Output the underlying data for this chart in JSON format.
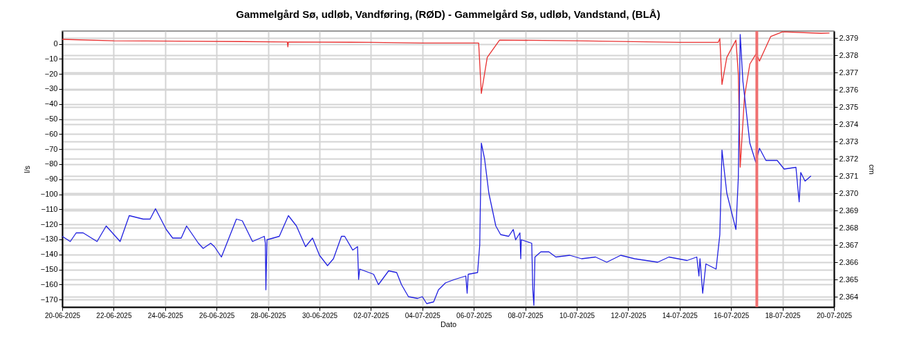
{
  "chart_data": {
    "type": "line",
    "title": "Gammelgård Sø, udløb, Vandføring, (RØD)  -  Gammelgård Sø, udløb, Vandstand, (BLÅ)",
    "xlabel": "Dato",
    "ylabel": "l/s",
    "y2label": "cm",
    "grid": true,
    "xlim": [
      "2025-06-20",
      "2025-07-20"
    ],
    "xticks": [
      {
        "value": "2025-06-20",
        "label": "20-06-2025"
      },
      {
        "value": "2025-06-22",
        "label": "22-06-2025"
      },
      {
        "value": "2025-06-24",
        "label": "24-06-2025"
      },
      {
        "value": "2025-06-26",
        "label": "26-06-2025"
      },
      {
        "value": "2025-06-28",
        "label": "28-06-2025"
      },
      {
        "value": "2025-06-30",
        "label": "30-06-2025"
      },
      {
        "value": "2025-07-02",
        "label": "02-07-2025"
      },
      {
        "value": "2025-07-04",
        "label": "04-07-2025"
      },
      {
        "value": "2025-07-06",
        "label": "06-07-2025"
      },
      {
        "value": "2025-07-08",
        "label": "08-07-2025"
      },
      {
        "value": "2025-07-10",
        "label": "10-07-2025"
      },
      {
        "value": "2025-07-12",
        "label": "12-07-2025"
      },
      {
        "value": "2025-07-14",
        "label": "14-07-2025"
      },
      {
        "value": "2025-07-16",
        "label": "16-07-2025"
      },
      {
        "value": "2025-07-18",
        "label": "18-07-2025"
      },
      {
        "value": "2025-07-20",
        "label": "20-07-2025"
      }
    ],
    "ylim": [
      -175,
      8.5
    ],
    "yticks": [
      0,
      -10,
      -20,
      -30,
      -40,
      -50,
      -60,
      -70,
      -80,
      -90,
      -100,
      -110,
      -120,
      -130,
      -140,
      -150,
      -160,
      -170
    ],
    "y2lim": [
      2.3634,
      2.3794
    ],
    "y2ticks": [
      2.364,
      2.365,
      2.366,
      2.367,
      2.368,
      2.369,
      {
        "value": 2.37,
        "label": "2.370"
      },
      2.371,
      2.372,
      2.373,
      2.374,
      2.375,
      2.376,
      2.377,
      2.378,
      2.379
    ],
    "ref_lines": [
      {
        "axis": "x",
        "value": "2025-07-17T00:00",
        "color": "#f07070"
      }
    ],
    "series": [
      {
        "color": "#e83030",
        "x": [
          "2025-06-20T00:00",
          "2025-06-22T00:00",
          "2025-06-27T00:00",
          "2025-06-28T18:00",
          "2025-06-28T18:30",
          "2025-06-28T19:00",
          "2025-07-02T00:00",
          "2025-07-04T00:00",
          "2025-07-06T04:30",
          "2025-07-06T07:00",
          "2025-07-06T12:30",
          "2025-07-07T00:00",
          "2025-07-10T00:00",
          "2025-07-14T00:00",
          "2025-07-15T12:00",
          "2025-07-15T13:30",
          "2025-07-15T15:30",
          "2025-07-15T20:00",
          "2025-07-16T04:30",
          "2025-07-16T06:45",
          "2025-07-16T08:30",
          "2025-07-16T12:30",
          "2025-07-16T17:30",
          "2025-07-16T23:30",
          "2025-07-17T02:30",
          "2025-07-17T13:00",
          "2025-07-18T00:00",
          "2025-07-19T12:00",
          "2025-07-19T19:45"
        ],
        "values": [
          3,
          2,
          1.5,
          1.2,
          -2,
          1.2,
          1,
          0.5,
          0.5,
          -33,
          -9,
          2.5,
          2,
          1,
          1,
          3.5,
          -27,
          -9,
          2.5,
          -20,
          -82,
          -35,
          -13.4,
          -6.5,
          -11.5,
          4.9,
          8,
          7,
          7.2
        ]
      },
      {
        "color": "#2020e0",
        "axis": "y2",
        "x": [
          "2025-06-20T00:00",
          "2025-06-20T07:30",
          "2025-06-20T13:00",
          "2025-06-20T19:30",
          "2025-06-21T08:30",
          "2025-06-21T17:00",
          "2025-06-22T06:00",
          "2025-06-22T14:30",
          "2025-06-23T03:30",
          "2025-06-23T10:00",
          "2025-06-23T15:00",
          "2025-06-24T01:00",
          "2025-06-24T07:00",
          "2025-06-24T15:00",
          "2025-06-24T20:00",
          "2025-06-25T07:00",
          "2025-06-25T11:30",
          "2025-06-25T18:30",
          "2025-06-25T22:00",
          "2025-06-26T04:30",
          "2025-06-26T18:30",
          "2025-06-27T00:00",
          "2025-06-27T09:30",
          "2025-06-27T20:30",
          "2025-06-27T21:30",
          "2025-06-27T22:00",
          "2025-06-27T23:00",
          "2025-06-28T10:30",
          "2025-06-28T19:00",
          "2025-06-29T02:30",
          "2025-06-29T11:00",
          "2025-06-29T17:30",
          "2025-06-30T00:00",
          "2025-06-30T07:30",
          "2025-06-30T13:00",
          "2025-06-30T20:30",
          "2025-06-30T23:30",
          "2025-07-01T07:00",
          "2025-07-01T11:30",
          "2025-07-01T12:30",
          "2025-07-01T13:30",
          "2025-07-02T02:30",
          "2025-07-02T07:00",
          "2025-07-02T16:30",
          "2025-07-03T00:00",
          "2025-07-03T04:30",
          "2025-07-03T11:00",
          "2025-07-03T19:30",
          "2025-07-04T00:00",
          "2025-07-04T04:00",
          "2025-07-04T10:30",
          "2025-07-04T15:00",
          "2025-07-04T21:30",
          "2025-07-05T06:00",
          "2025-07-05T16:30",
          "2025-07-05T17:45",
          "2025-07-05T18:45",
          "2025-07-06T03:30",
          "2025-07-06T05:30",
          "2025-07-06T07:00",
          "2025-07-06T10:00",
          "2025-07-06T14:00",
          "2025-07-06T20:30",
          "2025-07-07T01:00",
          "2025-07-07T08:30",
          "2025-07-07T12:45",
          "2025-07-07T15:00",
          "2025-07-07T19:00",
          "2025-07-07T19:45",
          "2025-07-07T20:15",
          "2025-07-08T06:00",
          "2025-07-08T07:00",
          "2025-07-08T08:00",
          "2025-07-08T09:00",
          "2025-07-08T14:30",
          "2025-07-08T22:00",
          "2025-07-09T04:30",
          "2025-07-09T17:30",
          "2025-07-10T04:30",
          "2025-07-10T17:30",
          "2025-07-11T04:00",
          "2025-07-11T17:00",
          "2025-07-12T06:00",
          "2025-07-13T03:30",
          "2025-07-13T14:00",
          "2025-07-14T07:00",
          "2025-07-14T16:00",
          "2025-07-14T18:00",
          "2025-07-14T19:00",
          "2025-07-14T21:30",
          "2025-07-15T00:30",
          "2025-07-15T10:00",
          "2025-07-15T13:30",
          "2025-07-15T15:30",
          "2025-07-15T20:00",
          "2025-07-16T04:30",
          "2025-07-16T06:45",
          "2025-07-16T08:30",
          "2025-07-16T11:00",
          "2025-07-16T17:30",
          "2025-07-16T23:00",
          "2025-07-17T02:30",
          "2025-07-17T08:30",
          "2025-07-17T19:00",
          "2025-07-18T01:30",
          "2025-07-18T12:30",
          "2025-07-18T15:30",
          "2025-07-18T17:00",
          "2025-07-18T21:00",
          "2025-07-19T02:30"
        ],
        "values": [
          2.3675,
          2.3672,
          2.3677,
          2.3677,
          2.3672,
          2.3681,
          2.3672,
          2.3687,
          2.3685,
          2.3685,
          2.3691,
          2.3679,
          2.3674,
          2.3674,
          2.3681,
          2.3671,
          2.3668,
          2.3671,
          2.3669,
          2.3663,
          2.3685,
          2.3684,
          2.3672,
          2.3675,
          2.3671,
          2.3644,
          2.3673,
          2.3675,
          2.3687,
          2.3681,
          2.3669,
          2.3674,
          2.3664,
          2.3658,
          2.3662,
          2.3675,
          2.3675,
          2.3667,
          2.3669,
          2.365,
          2.3656,
          2.3653,
          2.3647,
          2.3655,
          2.3654,
          2.3647,
          2.364,
          2.3639,
          2.364,
          2.3636,
          2.3637,
          2.3644,
          2.3648,
          2.365,
          2.3652,
          2.3642,
          2.3653,
          2.3654,
          2.367,
          2.3729,
          2.372,
          2.37,
          2.3681,
          2.3676,
          2.3675,
          2.3679,
          2.3673,
          2.3677,
          2.3662,
          2.3673,
          2.3671,
          2.3644,
          2.3635,
          2.3663,
          2.3666,
          2.3666,
          2.3663,
          2.3664,
          2.3662,
          2.3663,
          2.366,
          2.3664,
          2.3662,
          2.366,
          2.3663,
          2.3661,
          2.3663,
          2.3652,
          2.3662,
          2.3642,
          2.3659,
          2.3656,
          2.3676,
          2.3725,
          2.37,
          2.3679,
          2.3709,
          2.3792,
          2.3765,
          2.3729,
          2.3718,
          2.3726,
          2.3719,
          2.3719,
          2.3714,
          2.3715,
          2.3695,
          2.3712,
          2.3707,
          2.371
        ]
      }
    ]
  }
}
